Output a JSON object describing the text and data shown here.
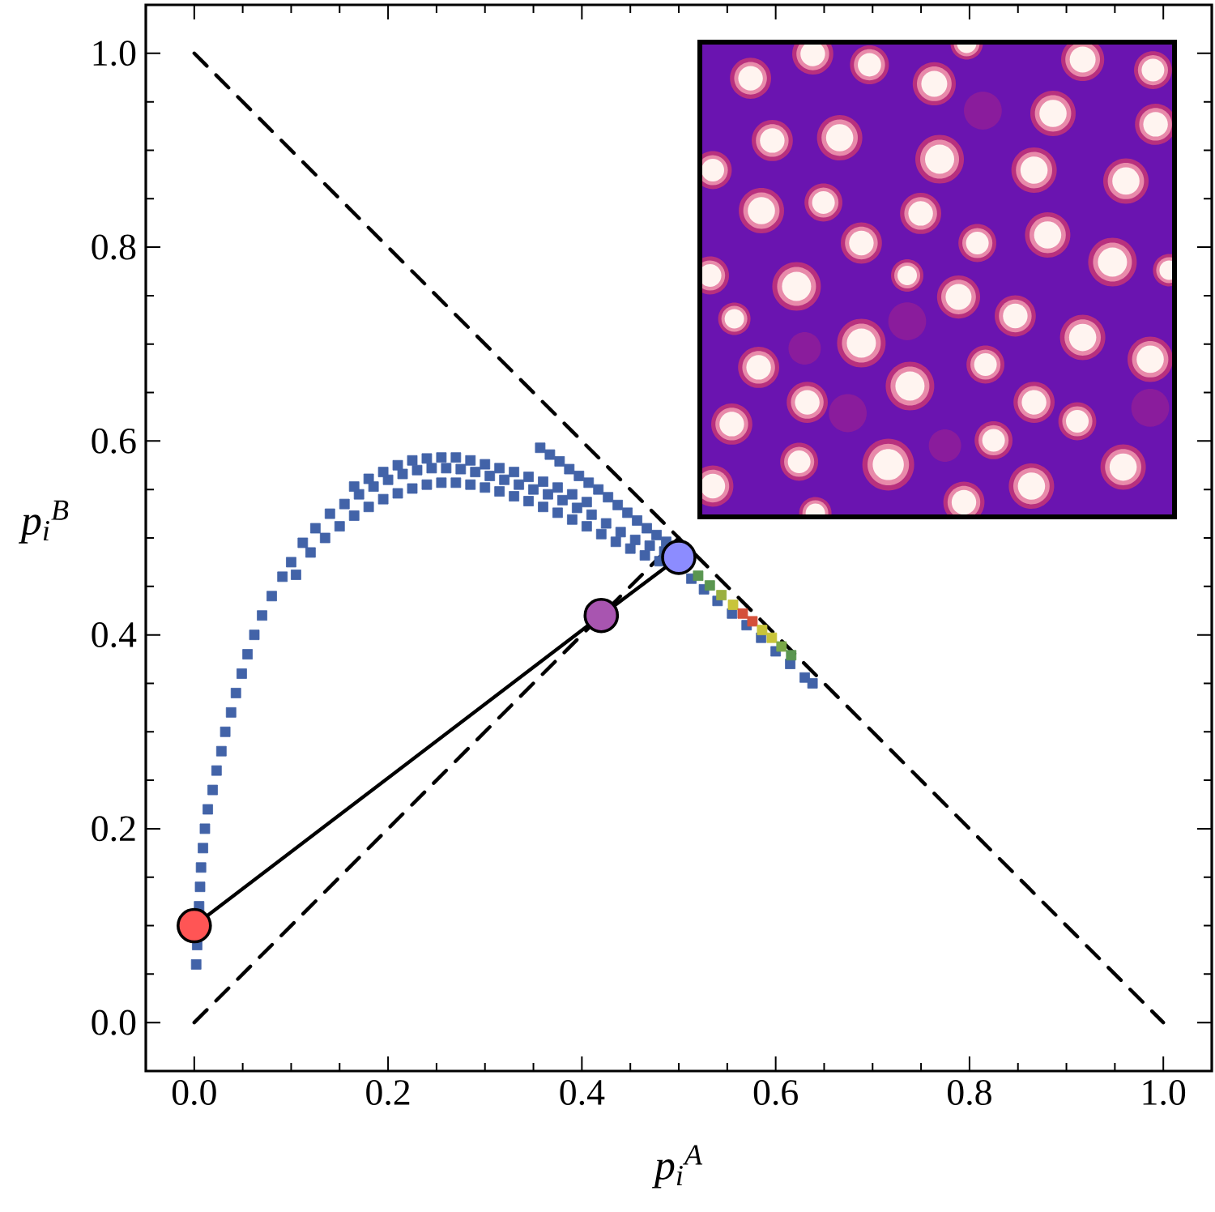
{
  "chart_data": {
    "type": "scatter",
    "xlabel": "p$_{i}$$^{A}$",
    "ylabel": "p$_{i}$$^{B}$",
    "xlim": [
      -0.05,
      1.05
    ],
    "ylim": [
      -0.05,
      1.05
    ],
    "xticks": [
      {
        "value": 0,
        "label": "0.0"
      },
      0.2,
      0.4,
      0.6,
      0.8,
      {
        "value": 1,
        "label": "1.0"
      },
      {
        "value": 0.05,
        "label": null
      },
      {
        "value": 0.1,
        "label": null
      },
      {
        "value": 0.15,
        "label": null
      },
      {
        "value": 0.25,
        "label": null
      },
      {
        "value": 0.3,
        "label": null
      },
      {
        "value": 0.35,
        "label": null
      },
      {
        "value": 0.45,
        "label": null
      },
      {
        "value": 0.5,
        "label": null
      },
      {
        "value": 0.55,
        "label": null
      },
      {
        "value": 0.65,
        "label": null
      },
      {
        "value": 0.7,
        "label": null
      },
      {
        "value": 0.75,
        "label": null
      },
      {
        "value": 0.85,
        "label": null
      },
      {
        "value": 0.9,
        "label": null
      },
      {
        "value": 0.95,
        "label": null
      }
    ],
    "yticks": [
      {
        "value": 0,
        "label": "0.0"
      },
      0.2,
      0.4,
      0.6,
      0.8,
      {
        "value": 1,
        "label": "1.0"
      },
      {
        "value": 0.05,
        "label": null
      },
      {
        "value": 0.1,
        "label": null
      },
      {
        "value": 0.15,
        "label": null
      },
      {
        "value": 0.25,
        "label": null
      },
      {
        "value": 0.3,
        "label": null
      },
      {
        "value": 0.35,
        "label": null
      },
      {
        "value": 0.45,
        "label": null
      },
      {
        "value": 0.5,
        "label": null
      },
      {
        "value": 0.55,
        "label": null
      },
      {
        "value": 0.65,
        "label": null
      },
      {
        "value": 0.7,
        "label": null
      },
      {
        "value": 0.75,
        "label": null
      },
      {
        "value": 0.85,
        "label": null
      },
      {
        "value": 0.9,
        "label": null
      },
      {
        "value": 0.95,
        "label": null
      }
    ],
    "series": [
      {
        "marker": "square",
        "color": "#4263a8",
        "x": [
          0.002,
          0.003,
          0.005,
          0.006,
          0.007,
          0.009,
          0.011,
          0.014,
          0.019,
          0.023,
          0.028,
          0.032,
          0.038,
          0.043,
          0.049,
          0.055,
          0.062,
          0.07,
          0.08,
          0.091,
          0.1,
          0.112,
          0.125,
          0.14,
          0.155,
          0.17,
          0.185,
          0.2,
          0.215,
          0.23,
          0.245,
          0.26,
          0.275,
          0.29,
          0.305,
          0.32,
          0.335,
          0.35,
          0.365,
          0.38,
          0.395,
          0.41,
          0.425,
          0.44,
          0.455,
          0.47,
          0.485,
          0.513,
          0.526,
          0.54,
          0.555,
          0.57,
          0.585,
          0.6,
          0.615,
          0.63,
          0.638,
          0.105,
          0.12,
          0.135,
          0.15,
          0.165,
          0.18,
          0.195,
          0.21,
          0.225,
          0.24,
          0.255,
          0.27,
          0.285,
          0.3,
          0.315,
          0.33,
          0.345,
          0.36,
          0.375,
          0.39,
          0.405,
          0.42,
          0.435,
          0.45,
          0.465,
          0.48,
          0.165,
          0.18,
          0.195,
          0.21,
          0.225,
          0.24,
          0.255,
          0.27,
          0.285,
          0.3,
          0.315,
          0.33,
          0.345,
          0.36,
          0.375,
          0.39,
          0.405,
          0.357,
          0.367,
          0.377,
          0.387,
          0.397,
          0.407,
          0.417,
          0.427,
          0.437,
          0.447,
          0.457,
          0.467,
          0.477,
          0.487
        ],
        "values": [
          0.06,
          0.08,
          0.12,
          0.14,
          0.16,
          0.18,
          0.2,
          0.22,
          0.24,
          0.26,
          0.28,
          0.3,
          0.32,
          0.34,
          0.36,
          0.38,
          0.4,
          0.42,
          0.44,
          0.46,
          0.475,
          0.495,
          0.51,
          0.525,
          0.535,
          0.545,
          0.553,
          0.56,
          0.566,
          0.57,
          0.572,
          0.572,
          0.571,
          0.568,
          0.564,
          0.56,
          0.555,
          0.55,
          0.545,
          0.539,
          0.531,
          0.524,
          0.515,
          0.506,
          0.498,
          0.492,
          0.486,
          0.458,
          0.447,
          0.435,
          0.422,
          0.41,
          0.397,
          0.383,
          0.37,
          0.356,
          0.35,
          0.462,
          0.485,
          0.5,
          0.512,
          0.523,
          0.532,
          0.54,
          0.546,
          0.551,
          0.555,
          0.557,
          0.557,
          0.555,
          0.552,
          0.548,
          0.543,
          0.538,
          0.532,
          0.526,
          0.519,
          0.512,
          0.504,
          0.496,
          0.489,
          0.482,
          0.476,
          0.553,
          0.561,
          0.568,
          0.575,
          0.58,
          0.582,
          0.583,
          0.583,
          0.58,
          0.576,
          0.572,
          0.568,
          0.563,
          0.558,
          0.552,
          0.545,
          0.537,
          0.593,
          0.586,
          0.579,
          0.571,
          0.564,
          0.557,
          0.55,
          0.542,
          0.534,
          0.526,
          0.518,
          0.51,
          0.503,
          0.496
        ]
      },
      {
        "marker": "square",
        "colors": [
          "#5a9650",
          "#5a9650",
          "#9ab040",
          "#c8c43a",
          "#d4503a",
          "#d4503a",
          "#c8c43a",
          "#c8c43a",
          "#7aa848",
          "#5a9650"
        ],
        "x": [
          0.52,
          0.532,
          0.544,
          0.556,
          0.566,
          0.576,
          0.586,
          0.596,
          0.606,
          0.616
        ],
        "values": [
          0.461,
          0.451,
          0.441,
          0.431,
          0.422,
          0.414,
          0.405,
          0.397,
          0.388,
          0.379
        ]
      },
      {
        "type": "line",
        "marker": "none",
        "line_style": "dashed",
        "color": "#000000",
        "x": [
          0,
          1
        ],
        "values": [
          1,
          0
        ]
      },
      {
        "type": "line",
        "marker": "none",
        "line_style": "dashed",
        "color": "#000000",
        "x": [
          0,
          0.5
        ],
        "values": [
          0,
          0.5
        ]
      },
      {
        "type": "line",
        "marker": "circle",
        "line_style": "solid",
        "color": "#000000",
        "colors": [
          "#ff5555",
          "#a855b0",
          "#8c8cff"
        ],
        "x": [
          0,
          0.42,
          0.5
        ],
        "values": [
          0.1,
          0.42,
          0.48
        ]
      }
    ]
  }
}
